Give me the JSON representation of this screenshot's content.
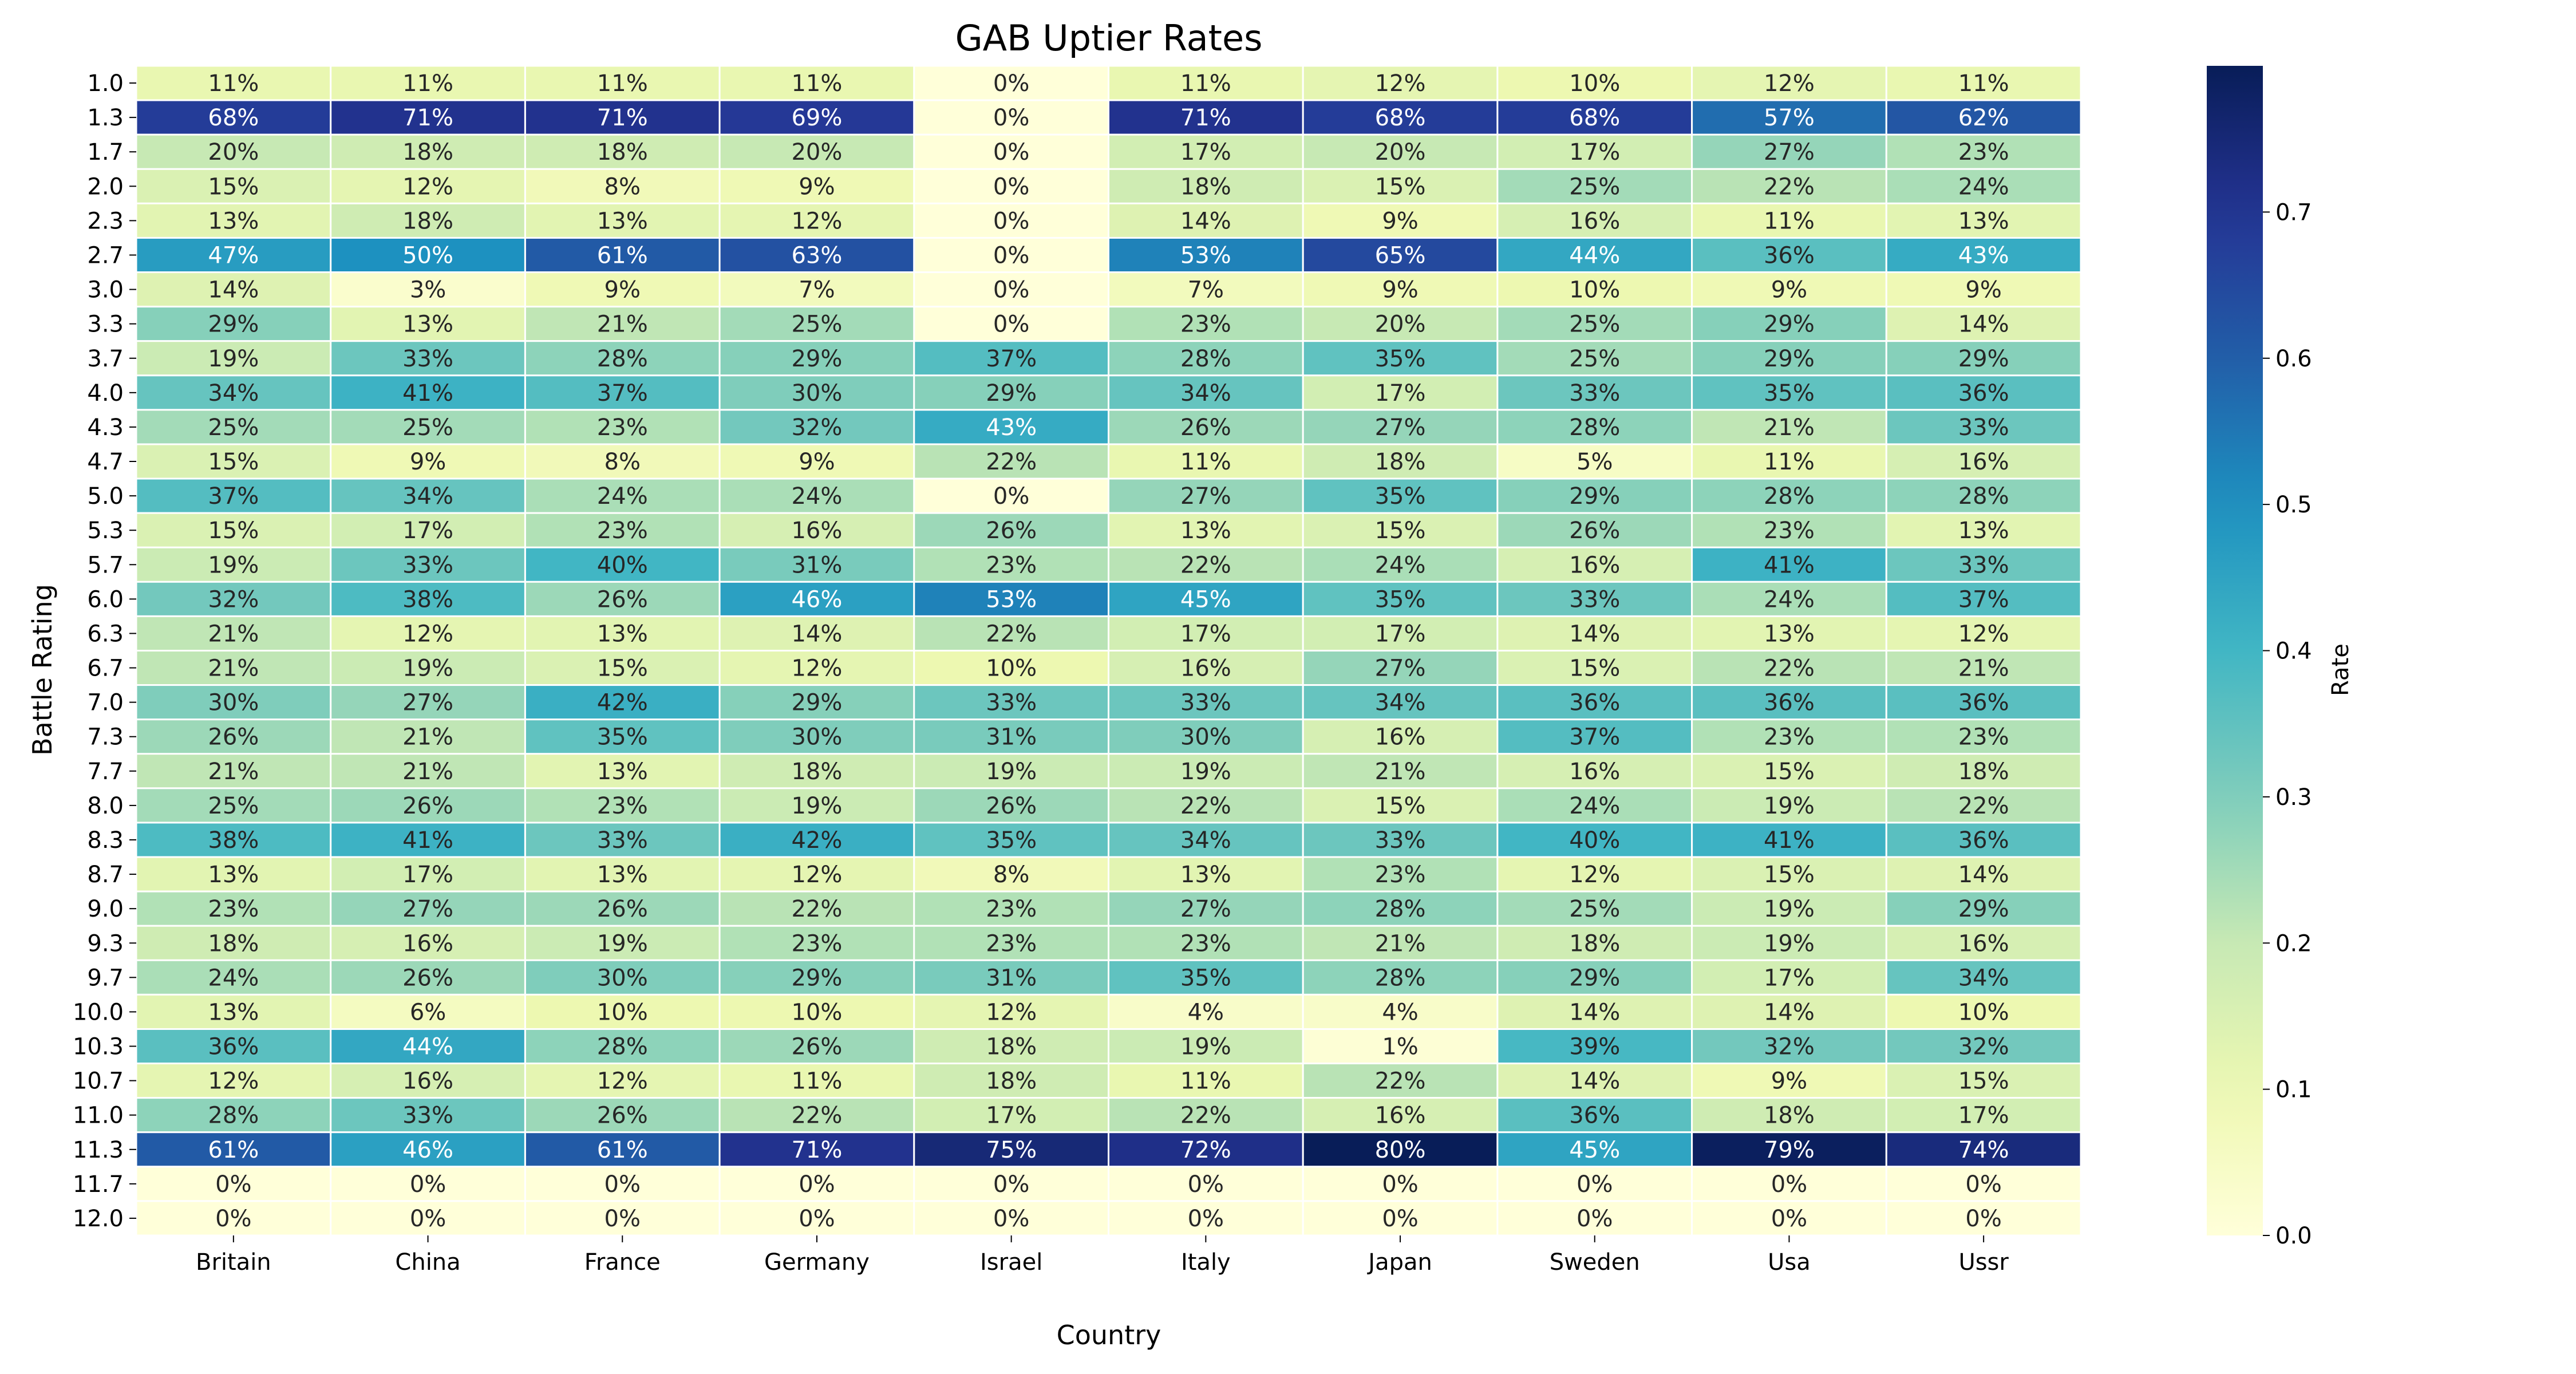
{
  "chart_data": {
    "type": "heatmap",
    "title": "GAB Uptier Rates",
    "xlabel": "Country",
    "ylabel": "Battle Rating",
    "colorbar_label": "Rate",
    "x_categories": [
      "Britain",
      "China",
      "France",
      "Germany",
      "Israel",
      "Italy",
      "Japan",
      "Sweden",
      "Usa",
      "Ussr"
    ],
    "y_categories": [
      "1.0",
      "1.3",
      "1.7",
      "2.0",
      "2.3",
      "2.7",
      "3.0",
      "3.3",
      "3.7",
      "4.0",
      "4.3",
      "4.7",
      "5.0",
      "5.3",
      "5.7",
      "6.0",
      "6.3",
      "6.7",
      "7.0",
      "7.3",
      "7.7",
      "8.0",
      "8.3",
      "8.7",
      "9.0",
      "9.3",
      "9.7",
      "10.0",
      "10.3",
      "10.7",
      "11.0",
      "11.3",
      "11.7",
      "12.0"
    ],
    "values": [
      [
        0.11,
        0.11,
        0.11,
        0.11,
        0.0,
        0.11,
        0.12,
        0.1,
        0.12,
        0.11
      ],
      [
        0.68,
        0.71,
        0.71,
        0.69,
        0.0,
        0.71,
        0.68,
        0.68,
        0.57,
        0.62
      ],
      [
        0.2,
        0.18,
        0.18,
        0.2,
        0.0,
        0.17,
        0.2,
        0.17,
        0.27,
        0.23
      ],
      [
        0.15,
        0.12,
        0.08,
        0.09,
        0.0,
        0.18,
        0.15,
        0.25,
        0.22,
        0.24
      ],
      [
        0.13,
        0.18,
        0.13,
        0.12,
        0.0,
        0.14,
        0.09,
        0.16,
        0.11,
        0.13
      ],
      [
        0.47,
        0.5,
        0.61,
        0.63,
        0.0,
        0.53,
        0.65,
        0.44,
        0.36,
        0.43
      ],
      [
        0.14,
        0.03,
        0.09,
        0.07,
        0.0,
        0.07,
        0.09,
        0.1,
        0.09,
        0.09
      ],
      [
        0.29,
        0.13,
        0.21,
        0.25,
        0.0,
        0.23,
        0.2,
        0.25,
        0.29,
        0.14
      ],
      [
        0.19,
        0.33,
        0.28,
        0.29,
        0.37,
        0.28,
        0.35,
        0.25,
        0.29,
        0.29
      ],
      [
        0.34,
        0.41,
        0.37,
        0.3,
        0.29,
        0.34,
        0.17,
        0.33,
        0.35,
        0.36
      ],
      [
        0.25,
        0.25,
        0.23,
        0.32,
        0.43,
        0.26,
        0.27,
        0.28,
        0.21,
        0.33
      ],
      [
        0.15,
        0.09,
        0.08,
        0.09,
        0.22,
        0.11,
        0.18,
        0.05,
        0.11,
        0.16
      ],
      [
        0.37,
        0.34,
        0.24,
        0.24,
        0.0,
        0.27,
        0.35,
        0.29,
        0.28,
        0.28
      ],
      [
        0.15,
        0.17,
        0.23,
        0.16,
        0.26,
        0.13,
        0.15,
        0.26,
        0.23,
        0.13
      ],
      [
        0.19,
        0.33,
        0.4,
        0.31,
        0.23,
        0.22,
        0.24,
        0.16,
        0.41,
        0.33
      ],
      [
        0.32,
        0.38,
        0.26,
        0.46,
        0.53,
        0.45,
        0.35,
        0.33,
        0.24,
        0.37
      ],
      [
        0.21,
        0.12,
        0.13,
        0.14,
        0.22,
        0.17,
        0.17,
        0.14,
        0.13,
        0.12
      ],
      [
        0.21,
        0.19,
        0.15,
        0.12,
        0.1,
        0.16,
        0.27,
        0.15,
        0.22,
        0.21
      ],
      [
        0.3,
        0.27,
        0.42,
        0.29,
        0.33,
        0.33,
        0.34,
        0.36,
        0.36,
        0.36
      ],
      [
        0.26,
        0.21,
        0.35,
        0.3,
        0.31,
        0.3,
        0.16,
        0.37,
        0.23,
        0.23
      ],
      [
        0.21,
        0.21,
        0.13,
        0.18,
        0.19,
        0.19,
        0.21,
        0.16,
        0.15,
        0.18
      ],
      [
        0.25,
        0.26,
        0.23,
        0.19,
        0.26,
        0.22,
        0.15,
        0.24,
        0.19,
        0.22
      ],
      [
        0.38,
        0.41,
        0.33,
        0.42,
        0.35,
        0.34,
        0.33,
        0.4,
        0.41,
        0.36
      ],
      [
        0.13,
        0.17,
        0.13,
        0.12,
        0.08,
        0.13,
        0.23,
        0.12,
        0.15,
        0.14
      ],
      [
        0.23,
        0.27,
        0.26,
        0.22,
        0.23,
        0.27,
        0.28,
        0.25,
        0.19,
        0.29
      ],
      [
        0.18,
        0.16,
        0.19,
        0.23,
        0.23,
        0.23,
        0.21,
        0.18,
        0.19,
        0.16
      ],
      [
        0.24,
        0.26,
        0.3,
        0.29,
        0.31,
        0.35,
        0.28,
        0.29,
        0.17,
        0.34
      ],
      [
        0.13,
        0.06,
        0.1,
        0.1,
        0.12,
        0.04,
        0.04,
        0.14,
        0.14,
        0.1
      ],
      [
        0.36,
        0.44,
        0.28,
        0.26,
        0.18,
        0.19,
        0.01,
        0.39,
        0.32,
        0.32
      ],
      [
        0.12,
        0.16,
        0.12,
        0.11,
        0.18,
        0.11,
        0.22,
        0.14,
        0.09,
        0.15
      ],
      [
        0.28,
        0.33,
        0.26,
        0.22,
        0.17,
        0.22,
        0.16,
        0.36,
        0.18,
        0.17
      ],
      [
        0.61,
        0.46,
        0.61,
        0.71,
        0.75,
        0.72,
        0.8,
        0.45,
        0.79,
        0.74
      ],
      [
        0.0,
        0.0,
        0.0,
        0.0,
        0.0,
        0.0,
        0.0,
        0.0,
        0.0,
        0.0
      ],
      [
        0.0,
        0.0,
        0.0,
        0.0,
        0.0,
        0.0,
        0.0,
        0.0,
        0.0,
        0.0
      ]
    ],
    "value_format": "percent",
    "colormap": "YlGnBu",
    "value_range": [
      0.0,
      0.8
    ],
    "colorbar_ticks": [
      "0.0",
      "0.1",
      "0.2",
      "0.3",
      "0.4",
      "0.5",
      "0.6",
      "0.7"
    ],
    "colorbar_placement": "right",
    "grid": false
  }
}
